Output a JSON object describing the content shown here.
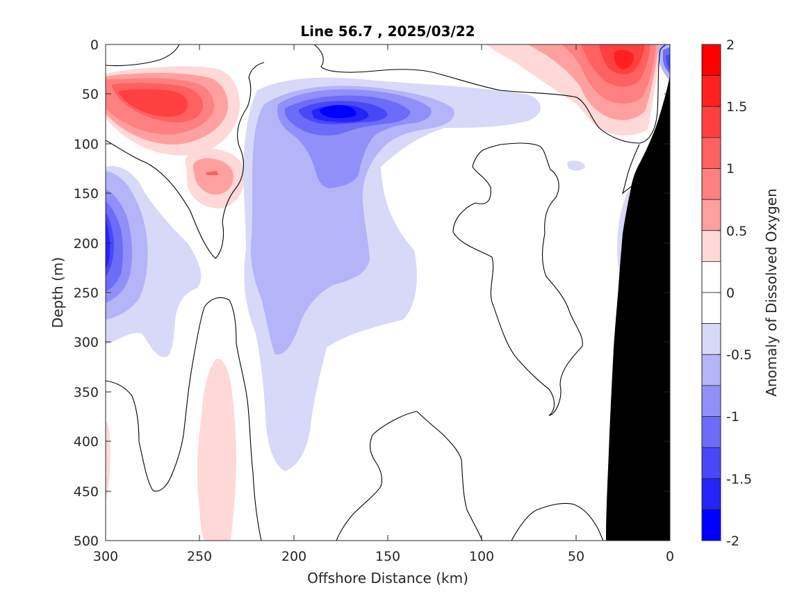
{
  "chart_data": {
    "type": "heatmap",
    "subtype": "filled-contour-section",
    "title": "Line 56.7 , 2025/03/22",
    "xlabel": "Offshore Distance (km)",
    "ylabel": "Depth (m)",
    "colorbar_label": "Anomaly of Dissolved Oxygen",
    "xlim": [
      300,
      0
    ],
    "x_reversed": true,
    "ylim": [
      0,
      500
    ],
    "y_reversed": true,
    "x_ticks": [
      300,
      250,
      200,
      150,
      100,
      50,
      0
    ],
    "x_tick_labels": [
      "300",
      "250",
      "200",
      "150",
      "100",
      "50",
      "0"
    ],
    "y_ticks": [
      0,
      50,
      100,
      150,
      200,
      250,
      300,
      350,
      400,
      450,
      500
    ],
    "y_tick_labels": [
      "0",
      "50",
      "100",
      "150",
      "200",
      "250",
      "300",
      "350",
      "400",
      "450",
      "500"
    ],
    "colorbar_range": [
      -2,
      2
    ],
    "colorbar_ticks": [
      2,
      1.5,
      1,
      0.5,
      0,
      -0.5,
      -1,
      -1.5,
      -2
    ],
    "colorbar_tick_labels": [
      "2",
      "1.5",
      "1",
      "0.5",
      "0",
      "-0.5",
      "-1",
      "-1.5",
      "-2"
    ],
    "colorbar_levels": [
      {
        "from": 1.75,
        "to": 2.0,
        "color": "#ff0000"
      },
      {
        "from": 1.5,
        "to": 1.75,
        "color": "#ff2020"
      },
      {
        "from": 1.25,
        "to": 1.5,
        "color": "#ff4040"
      },
      {
        "from": 1.0,
        "to": 1.25,
        "color": "#ff6060"
      },
      {
        "from": 0.75,
        "to": 1.0,
        "color": "#ff8080"
      },
      {
        "from": 0.5,
        "to": 0.75,
        "color": "#ffa0a0"
      },
      {
        "from": 0.25,
        "to": 0.5,
        "color": "#ffd8d8"
      },
      {
        "from": 0.0,
        "to": 0.25,
        "color": "#ffffff"
      },
      {
        "from": -0.25,
        "to": 0.0,
        "color": "#ffffff"
      },
      {
        "from": -0.5,
        "to": -0.25,
        "color": "#d8d8f8"
      },
      {
        "from": -0.75,
        "to": -0.5,
        "color": "#b4b4f8"
      },
      {
        "from": -1.0,
        "to": -0.75,
        "color": "#9090f8"
      },
      {
        "from": -1.25,
        "to": -1.0,
        "color": "#6c6cf8"
      },
      {
        "from": -1.5,
        "to": -1.25,
        "color": "#4848f8"
      },
      {
        "from": -1.75,
        "to": -1.5,
        "color": "#2424f8"
      },
      {
        "from": -2.0,
        "to": -1.75,
        "color": "#0000ff"
      }
    ],
    "features": [
      {
        "sign": "positive",
        "peak": 1.5,
        "x_km": [
          245,
          295
        ],
        "depth_m": [
          30,
          110
        ]
      },
      {
        "sign": "positive",
        "peak": 1.75,
        "x_km": [
          10,
          65
        ],
        "depth_m": [
          0,
          80
        ]
      },
      {
        "sign": "positive",
        "peak": 0.75,
        "x_km": [
          230,
          255
        ],
        "depth_m": [
          110,
          160
        ]
      },
      {
        "sign": "positive",
        "peak": 0.25,
        "x_km": [
          230,
          250
        ],
        "depth_m": [
          315,
          500
        ]
      },
      {
        "sign": "negative",
        "peak": -1.75,
        "x_km": [
          120,
          215
        ],
        "depth_m": [
          35,
          430
        ]
      },
      {
        "sign": "negative",
        "peak": -1.25,
        "x_km": [
          265,
          300
        ],
        "depth_m": [
          120,
          315
        ]
      },
      {
        "sign": "negative",
        "peak": -1.25,
        "x_km": [
          0,
          10
        ],
        "depth_m": [
          0,
          40
        ]
      }
    ],
    "bathymetry_color": "#000000",
    "zero_contour_color": "#000000"
  }
}
